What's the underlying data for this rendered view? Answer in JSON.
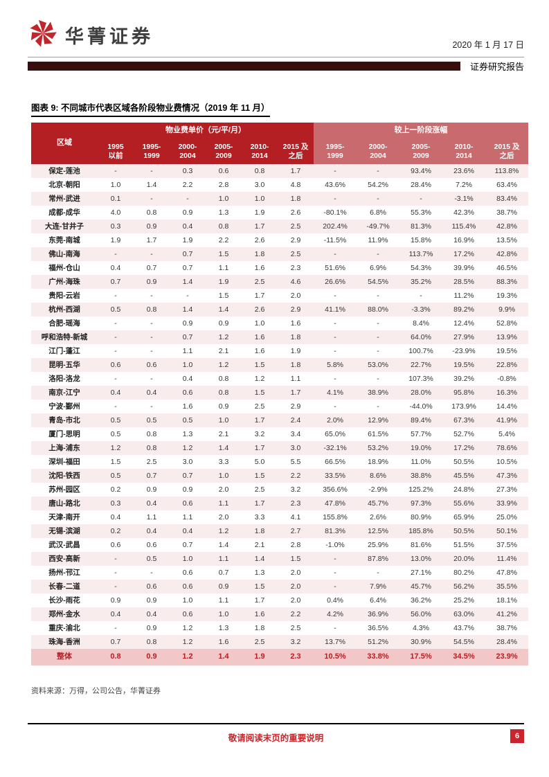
{
  "header": {
    "brand": "华菁证券",
    "date": "2020 年 1 月 17 日",
    "report_type": "证券研究报告"
  },
  "figure": {
    "title": "图表 9: 不同城市代表区域各阶段物业费情况（2019 年 11 月）",
    "source": "资料来源：万得，公司公告，华菁证券"
  },
  "table": {
    "region_header": "区域",
    "group_price_header": "物业费单价（元/平/月）",
    "group_growth_header": "较上一阶段涨幅",
    "price_columns": [
      "1995\n以前",
      "1995-\n1999",
      "2000-\n2004",
      "2005-\n2009",
      "2010-\n2014",
      "2015 及\n之后"
    ],
    "growth_columns": [
      "1995-\n1999",
      "2000-\n2004",
      "2005-\n2009",
      "2010-\n2014",
      "2015 及\n之后"
    ],
    "rows": [
      {
        "region": "保定-莲池",
        "prices": [
          "-",
          "-",
          "0.3",
          "0.6",
          "0.8",
          "1.7"
        ],
        "growth": [
          "-",
          "-",
          "93.4%",
          "23.6%",
          "113.8%"
        ]
      },
      {
        "region": "北京-朝阳",
        "prices": [
          "1.0",
          "1.4",
          "2.2",
          "2.8",
          "3.0",
          "4.8"
        ],
        "growth": [
          "43.6%",
          "54.2%",
          "28.4%",
          "7.2%",
          "63.4%"
        ]
      },
      {
        "region": "常州-武进",
        "prices": [
          "0.1",
          "-",
          "-",
          "1.0",
          "1.0",
          "1.8"
        ],
        "growth": [
          "-",
          "-",
          "-",
          "-3.1%",
          "83.4%"
        ]
      },
      {
        "region": "成都-成华",
        "prices": [
          "4.0",
          "0.8",
          "0.9",
          "1.3",
          "1.9",
          "2.6"
        ],
        "growth": [
          "-80.1%",
          "6.8%",
          "55.3%",
          "42.3%",
          "38.7%"
        ]
      },
      {
        "region": "大连-甘井子",
        "prices": [
          "0.3",
          "0.9",
          "0.4",
          "0.8",
          "1.7",
          "2.5"
        ],
        "growth": [
          "202.4%",
          "-49.7%",
          "81.3%",
          "115.4%",
          "42.8%"
        ]
      },
      {
        "region": "东莞-南城",
        "prices": [
          "1.9",
          "1.7",
          "1.9",
          "2.2",
          "2.6",
          "2.9"
        ],
        "growth": [
          "-11.5%",
          "11.9%",
          "15.8%",
          "16.9%",
          "13.5%"
        ]
      },
      {
        "region": "佛山-南海",
        "prices": [
          "-",
          "-",
          "0.7",
          "1.5",
          "1.8",
          "2.5"
        ],
        "growth": [
          "-",
          "-",
          "113.7%",
          "17.2%",
          "42.8%"
        ]
      },
      {
        "region": "福州-仓山",
        "prices": [
          "0.4",
          "0.7",
          "0.7",
          "1.1",
          "1.6",
          "2.3"
        ],
        "growth": [
          "51.6%",
          "6.9%",
          "54.3%",
          "39.9%",
          "46.5%"
        ]
      },
      {
        "region": "广州-海珠",
        "prices": [
          "0.7",
          "0.9",
          "1.4",
          "1.9",
          "2.5",
          "4.6"
        ],
        "growth": [
          "26.6%",
          "54.5%",
          "35.2%",
          "28.5%",
          "88.3%"
        ]
      },
      {
        "region": "贵阳-云岩",
        "prices": [
          "-",
          "-",
          "-",
          "1.5",
          "1.7",
          "2.0"
        ],
        "growth": [
          "-",
          "-",
          "-",
          "11.2%",
          "19.3%"
        ]
      },
      {
        "region": "杭州-西湖",
        "prices": [
          "0.5",
          "0.8",
          "1.4",
          "1.4",
          "2.6",
          "2.9"
        ],
        "growth": [
          "41.1%",
          "88.0%",
          "-3.3%",
          "89.2%",
          "9.9%"
        ]
      },
      {
        "region": "合肥-瑶海",
        "prices": [
          "-",
          "-",
          "0.9",
          "0.9",
          "1.0",
          "1.6"
        ],
        "growth": [
          "-",
          "-",
          "8.4%",
          "12.4%",
          "52.8%"
        ]
      },
      {
        "region": "呼和浩特-新城",
        "prices": [
          "-",
          "-",
          "0.7",
          "1.2",
          "1.6",
          "1.8"
        ],
        "growth": [
          "-",
          "-",
          "64.0%",
          "27.9%",
          "13.9%"
        ]
      },
      {
        "region": "江门-蓬江",
        "prices": [
          "-",
          "-",
          "1.1",
          "2.1",
          "1.6",
          "1.9"
        ],
        "growth": [
          "-",
          "-",
          "100.7%",
          "-23.9%",
          "19.5%"
        ]
      },
      {
        "region": "昆明-五华",
        "prices": [
          "0.6",
          "0.6",
          "1.0",
          "1.2",
          "1.5",
          "1.8"
        ],
        "growth": [
          "5.8%",
          "53.0%",
          "22.7%",
          "19.5%",
          "22.8%"
        ]
      },
      {
        "region": "洛阳-洛龙",
        "prices": [
          "-",
          "-",
          "0.4",
          "0.8",
          "1.2",
          "1.1"
        ],
        "growth": [
          "-",
          "-",
          "107.3%",
          "39.2%",
          "-0.8%"
        ]
      },
      {
        "region": "南京-江宁",
        "prices": [
          "0.4",
          "0.4",
          "0.6",
          "0.8",
          "1.5",
          "1.7"
        ],
        "growth": [
          "4.1%",
          "38.9%",
          "28.0%",
          "95.8%",
          "16.3%"
        ]
      },
      {
        "region": "宁波-鄞州",
        "prices": [
          "-",
          "-",
          "1.6",
          "0.9",
          "2.5",
          "2.9"
        ],
        "growth": [
          "-",
          "-",
          "-44.0%",
          "173.9%",
          "14.4%"
        ]
      },
      {
        "region": "青岛-市北",
        "prices": [
          "0.5",
          "0.5",
          "0.5",
          "1.0",
          "1.7",
          "2.4"
        ],
        "growth": [
          "2.0%",
          "12.9%",
          "89.4%",
          "67.3%",
          "41.9%"
        ]
      },
      {
        "region": "厦门-思明",
        "prices": [
          "0.5",
          "0.8",
          "1.3",
          "2.1",
          "3.2",
          "3.4"
        ],
        "growth": [
          "65.0%",
          "61.5%",
          "57.7%",
          "52.7%",
          "5.4%"
        ]
      },
      {
        "region": "上海-浦东",
        "prices": [
          "1.2",
          "0.8",
          "1.2",
          "1.4",
          "1.7",
          "3.0"
        ],
        "growth": [
          "-32.1%",
          "53.2%",
          "19.0%",
          "17.2%",
          "78.6%"
        ]
      },
      {
        "region": "深圳-福田",
        "prices": [
          "1.5",
          "2.5",
          "3.0",
          "3.3",
          "5.0",
          "5.5"
        ],
        "growth": [
          "66.5%",
          "18.9%",
          "11.0%",
          "50.5%",
          "10.5%"
        ]
      },
      {
        "region": "沈阳-铁西",
        "prices": [
          "0.5",
          "0.7",
          "0.7",
          "1.0",
          "1.5",
          "2.2"
        ],
        "growth": [
          "33.5%",
          "8.6%",
          "38.8%",
          "45.5%",
          "47.3%"
        ]
      },
      {
        "region": "苏州-园区",
        "prices": [
          "0.2",
          "0.9",
          "0.9",
          "2.0",
          "2.5",
          "3.2"
        ],
        "growth": [
          "356.6%",
          "-2.9%",
          "125.2%",
          "24.8%",
          "27.3%"
        ]
      },
      {
        "region": "唐山-路北",
        "prices": [
          "0.3",
          "0.4",
          "0.6",
          "1.1",
          "1.7",
          "2.3"
        ],
        "growth": [
          "47.8%",
          "45.7%",
          "97.3%",
          "55.6%",
          "33.9%"
        ]
      },
      {
        "region": "天津-南开",
        "prices": [
          "0.4",
          "1.1",
          "1.1",
          "2.0",
          "3.3",
          "4.1"
        ],
        "growth": [
          "155.8%",
          "2.6%",
          "80.9%",
          "65.9%",
          "25.0%"
        ]
      },
      {
        "region": "无锡-滨湖",
        "prices": [
          "0.2",
          "0.4",
          "0.4",
          "1.2",
          "1.8",
          "2.7"
        ],
        "growth": [
          "81.3%",
          "12.5%",
          "185.8%",
          "50.5%",
          "50.1%"
        ]
      },
      {
        "region": "武汉-武昌",
        "prices": [
          "0.6",
          "0.6",
          "0.7",
          "1.4",
          "2.1",
          "2.8"
        ],
        "growth": [
          "-1.0%",
          "25.9%",
          "81.6%",
          "51.5%",
          "37.5%"
        ]
      },
      {
        "region": "西安-高新",
        "prices": [
          "-",
          "0.5",
          "1.0",
          "1.1",
          "1.4",
          "1.5"
        ],
        "growth": [
          "-",
          "87.8%",
          "13.0%",
          "20.0%",
          "11.4%"
        ]
      },
      {
        "region": "扬州-邗江",
        "prices": [
          "-",
          "-",
          "0.6",
          "0.7",
          "1.3",
          "2.0"
        ],
        "growth": [
          "-",
          "-",
          "27.1%",
          "80.2%",
          "47.8%"
        ]
      },
      {
        "region": "长春-二道",
        "prices": [
          "-",
          "0.6",
          "0.6",
          "0.9",
          "1.5",
          "2.0"
        ],
        "growth": [
          "-",
          "7.9%",
          "45.7%",
          "56.2%",
          "35.5%"
        ]
      },
      {
        "region": "长沙-雨花",
        "prices": [
          "0.9",
          "0.9",
          "1.0",
          "1.1",
          "1.7",
          "2.0"
        ],
        "growth": [
          "0.4%",
          "6.4%",
          "36.2%",
          "25.2%",
          "18.1%"
        ]
      },
      {
        "region": "郑州-金水",
        "prices": [
          "0.4",
          "0.4",
          "0.6",
          "1.0",
          "1.6",
          "2.2"
        ],
        "growth": [
          "4.2%",
          "36.9%",
          "56.0%",
          "63.0%",
          "41.2%"
        ]
      },
      {
        "region": "重庆-渝北",
        "prices": [
          "-",
          "0.9",
          "1.2",
          "1.3",
          "1.8",
          "2.5"
        ],
        "growth": [
          "-",
          "36.5%",
          "4.3%",
          "43.7%",
          "38.7%"
        ]
      },
      {
        "region": "珠海-香洲",
        "prices": [
          "0.7",
          "0.8",
          "1.2",
          "1.6",
          "2.5",
          "3.2"
        ],
        "growth": [
          "13.7%",
          "51.2%",
          "30.9%",
          "54.5%",
          "28.4%"
        ]
      }
    ],
    "total_row": {
      "region": "整体",
      "prices": [
        "0.8",
        "0.9",
        "1.2",
        "1.4",
        "1.9",
        "2.3"
      ],
      "growth": [
        "10.5%",
        "33.8%",
        "17.5%",
        "34.5%",
        "23.9%"
      ]
    }
  },
  "footer": {
    "notice": "敬请阅读末页的重要说明",
    "page_number": "6"
  },
  "colors": {
    "header_red": "#b41f24",
    "header_light_red": "#c96a6e",
    "accent_bar_dark_red": "#380f0f",
    "total_row_bg": "#f2c7c7",
    "zebra_pink": "#f8ecec",
    "footer_red": "#c9252b",
    "logo_red": "#c0272d"
  }
}
